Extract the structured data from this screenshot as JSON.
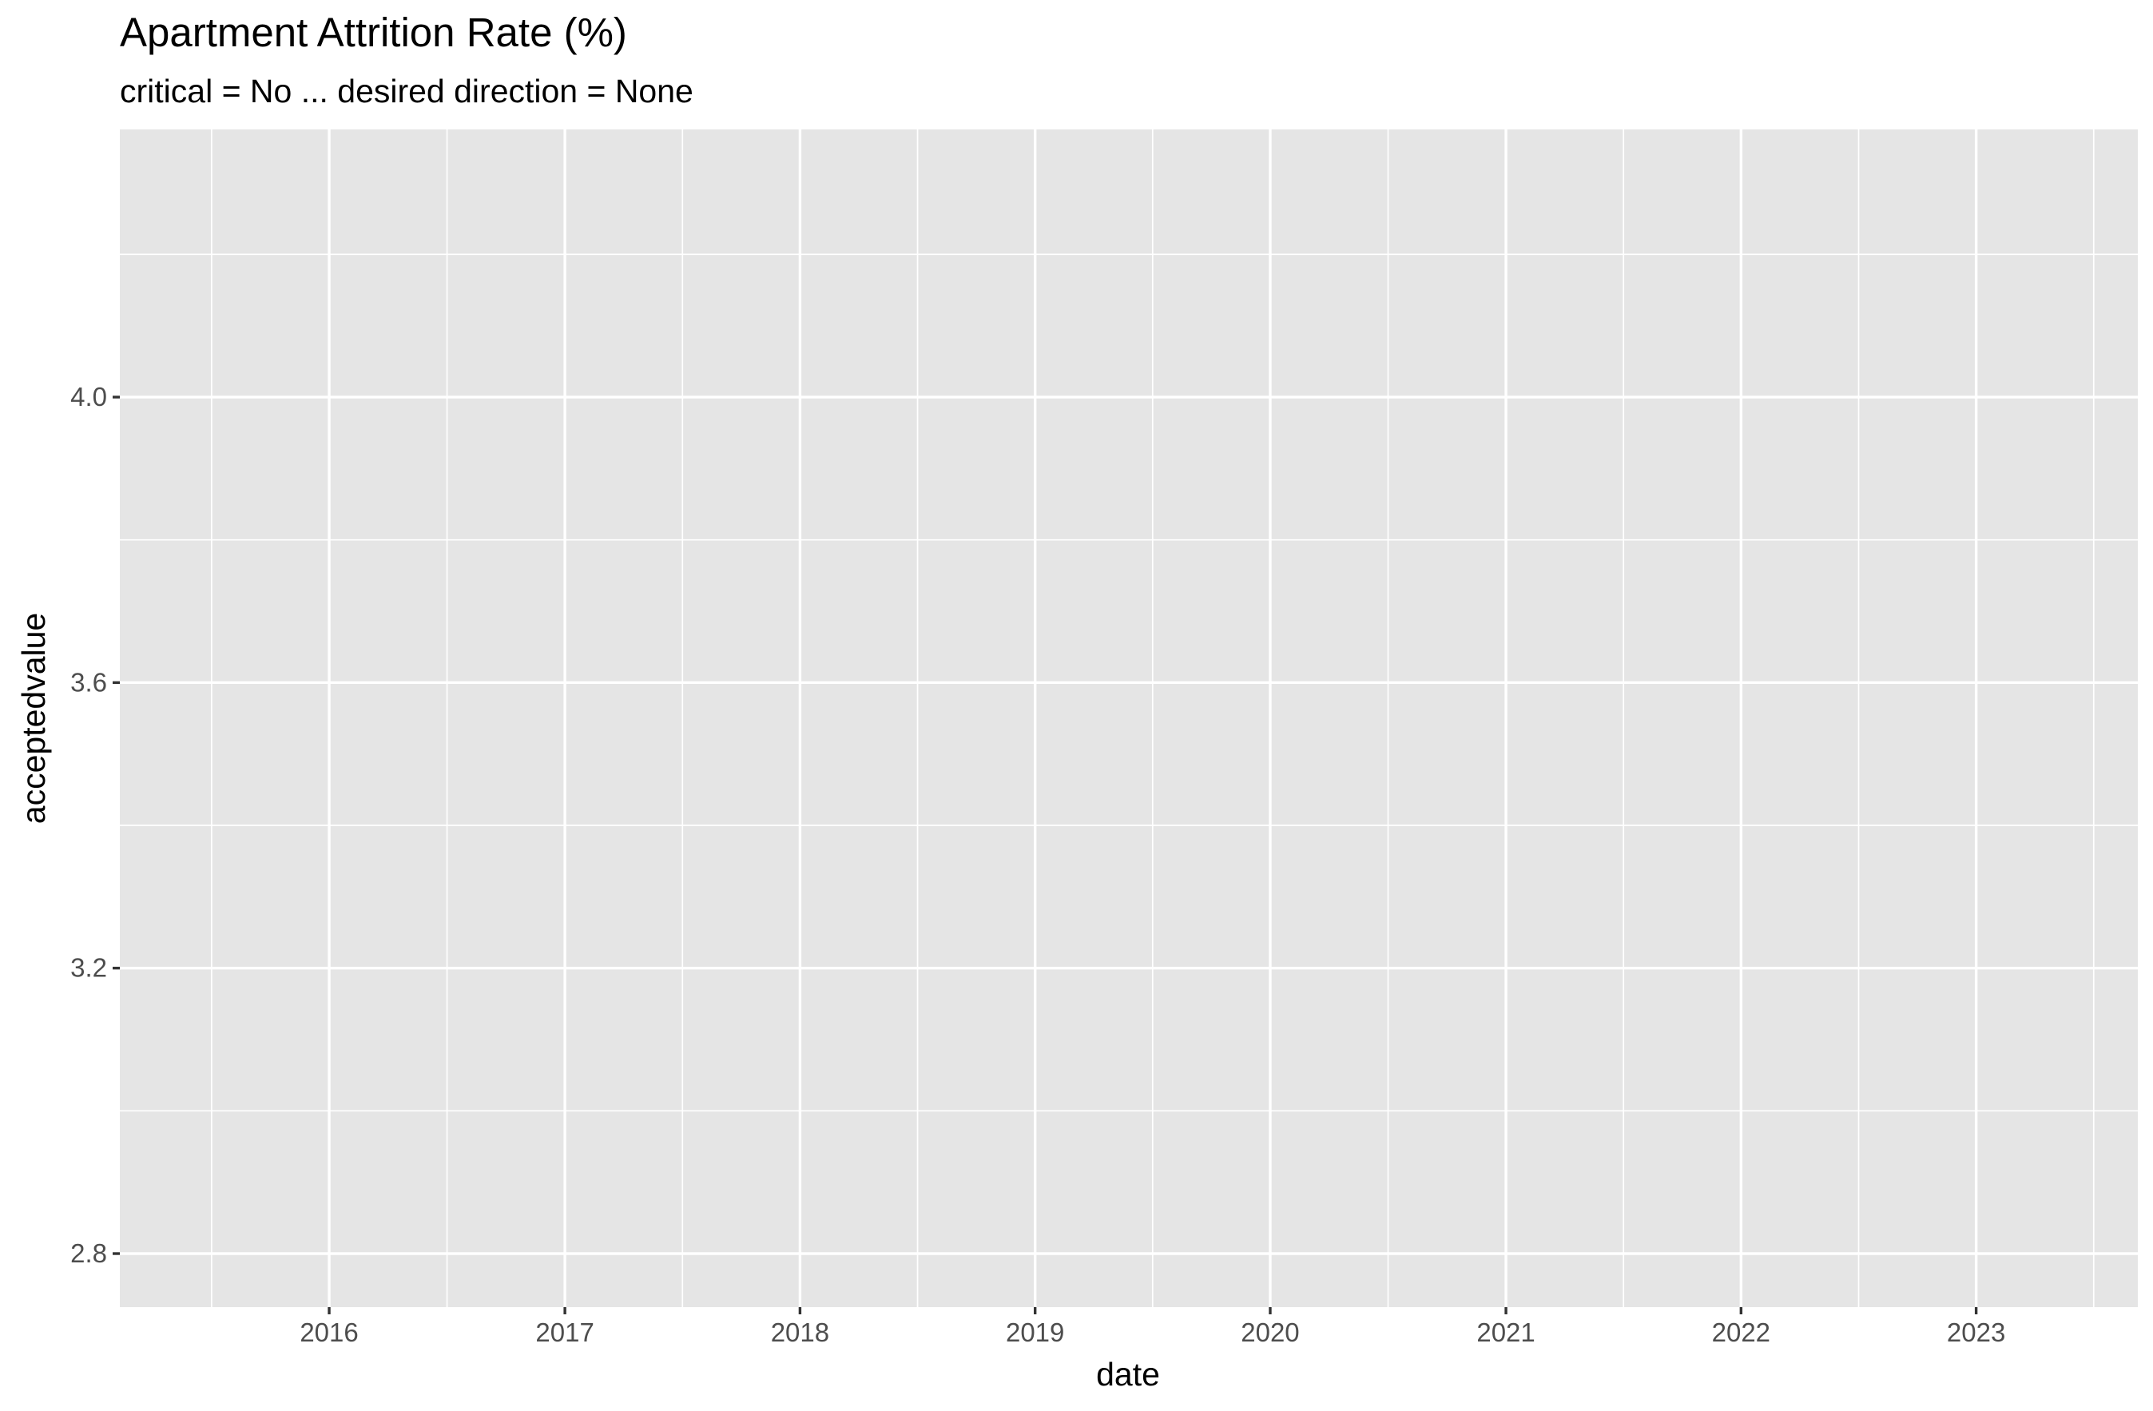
{
  "chart_data": {
    "type": "line",
    "title": "Apartment Attrition Rate (%)",
    "subtitle": "critical = No ... desired direction = None",
    "xlabel": "date",
    "ylabel": "acceptedvalue",
    "x_axis": {
      "kind": "date",
      "ticks": [
        "2016",
        "2017",
        "2018",
        "2019",
        "2020",
        "2021",
        "2022",
        "2023"
      ],
      "range": [
        "2015-02-10",
        "2023-09-09"
      ]
    },
    "y_axis": {
      "ticks": [
        "2.8",
        "3.2",
        "3.6",
        "4.0"
      ],
      "tick_values": [
        2.8,
        3.2,
        3.6,
        4.0
      ],
      "range": [
        2.725,
        4.375
      ]
    },
    "series": [],
    "panel_background": "#e5e5e5",
    "grid": true,
    "legend": "none"
  }
}
